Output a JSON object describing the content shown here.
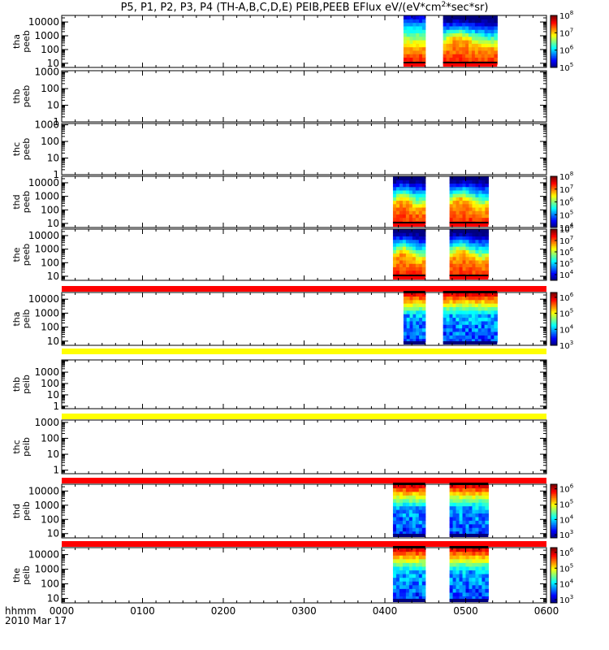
{
  "title": "P5, P1, P2, P3, P4 (TH-A,B,C,D,E) PEIB,PEEB EFlux eV/(eV*cm",
  "title_sup": "2",
  "title_end": "*sec*sr)",
  "x_axis": {
    "label": "hhmm",
    "date": "2010 Mar 17",
    "tick_labels": [
      "0000",
      "0100",
      "0200",
      "0300",
      "0400",
      "0500",
      "0600"
    ]
  },
  "colors": {
    "flag_red": "#ff0000",
    "flag_yellow": "#ffff00",
    "frame": "#000000"
  },
  "chart_data": {
    "type": "heatmap",
    "xlim_hours": [
      0,
      6
    ],
    "x": [
      0,
      1,
      2,
      3,
      4,
      5,
      6
    ],
    "panels": [
      {
        "probe": "tha",
        "product": "peeb",
        "ylabel": [
          "tha",
          "peeb"
        ],
        "yscale": "log",
        "ylim": [
          5,
          30000
        ],
        "yticks": [
          "10",
          "100",
          "1000",
          "10000"
        ],
        "cb_exps": [
          "5",
          "6",
          "7",
          "8"
        ],
        "cb_range": [
          5,
          8
        ],
        "flag_before": null,
        "intervals": [
          {
            "start": 4.23,
            "end": 4.5,
            "style": "eh"
          },
          {
            "start": 4.72,
            "end": 5.39,
            "style": "el"
          }
        ]
      },
      {
        "probe": "thb",
        "product": "peeb",
        "ylabel": [
          "thb",
          "peeb"
        ],
        "yscale": "log",
        "ylim": [
          1,
          1200
        ],
        "yticks": [
          "1",
          "10",
          "100",
          "1000"
        ],
        "cb_exps": [],
        "flag_before": null,
        "intervals": []
      },
      {
        "probe": "thc",
        "product": "peeb",
        "ylabel": [
          "thc",
          "peeb"
        ],
        "yscale": "log",
        "ylim": [
          1,
          1200
        ],
        "yticks": [
          "1",
          "10",
          "100",
          "1000"
        ],
        "cb_exps": [],
        "flag_before": null,
        "intervals": []
      },
      {
        "probe": "thd",
        "product": "peeb",
        "ylabel": [
          "thd",
          "peeb"
        ],
        "yscale": "log",
        "ylim": [
          5,
          30000
        ],
        "yticks": [
          "10",
          "100",
          "1000",
          "10000"
        ],
        "cb_exps": [
          "4",
          "5",
          "6",
          "7",
          "8"
        ],
        "cb_range": [
          4,
          8
        ],
        "flag_before": null,
        "intervals": [
          {
            "start": 4.1,
            "end": 4.5,
            "style": "el"
          },
          {
            "start": 4.8,
            "end": 5.28,
            "style": "el"
          }
        ]
      },
      {
        "probe": "the",
        "product": "peeb",
        "ylabel": [
          "the",
          "peeb"
        ],
        "yscale": "log",
        "ylim": [
          5,
          30000
        ],
        "yticks": [
          "10",
          "100",
          "1000",
          "10000"
        ],
        "cb_exps": [
          "4",
          "5",
          "6",
          "7",
          "8"
        ],
        "cb_range": [
          3.5,
          8
        ],
        "flag_before": null,
        "intervals": [
          {
            "start": 4.1,
            "end": 4.5,
            "style": "el"
          },
          {
            "start": 4.8,
            "end": 5.28,
            "style": "el"
          }
        ]
      },
      {
        "probe": "tha",
        "product": "peib",
        "ylabel": [
          "tha",
          "peib"
        ],
        "yscale": "log",
        "ylim": [
          5,
          30000
        ],
        "yticks": [
          "10",
          "100",
          "1000",
          "10000"
        ],
        "cb_exps": [
          "3",
          "4",
          "5",
          "6"
        ],
        "cb_range": [
          3,
          6.3
        ],
        "flag_before": "red",
        "intervals": [
          {
            "start": 4.23,
            "end": 4.5,
            "style": "ion"
          },
          {
            "start": 4.72,
            "end": 5.39,
            "style": "ion"
          }
        ]
      },
      {
        "probe": "thb",
        "product": "peib",
        "ylabel": [
          "thb",
          "peib"
        ],
        "yscale": "log",
        "ylim": [
          0.6,
          12000
        ],
        "yticks": [
          "1",
          "10",
          "100",
          "1000"
        ],
        "cb_exps": [],
        "flag_before": "yellow",
        "intervals": []
      },
      {
        "probe": "thc",
        "product": "peib",
        "ylabel": [
          "thc",
          "peib"
        ],
        "yscale": "log",
        "ylim": [
          0.6,
          1400
        ],
        "yticks": [
          "1",
          "10",
          "100",
          "1000"
        ],
        "cb_exps": [],
        "flag_before": "yellow",
        "intervals": []
      },
      {
        "probe": "thd",
        "product": "peib",
        "ylabel": [
          "thd",
          "peib"
        ],
        "yscale": "log",
        "ylim": [
          5,
          30000
        ],
        "yticks": [
          "10",
          "100",
          "1000",
          "10000"
        ],
        "cb_exps": [
          "3",
          "4",
          "5",
          "6"
        ],
        "cb_range": [
          2.8,
          6.3
        ],
        "flag_before": "red",
        "intervals": [
          {
            "start": 4.1,
            "end": 4.5,
            "style": "ion"
          },
          {
            "start": 4.8,
            "end": 5.28,
            "style": "ion"
          }
        ]
      },
      {
        "probe": "the",
        "product": "peib",
        "ylabel": [
          "the",
          "peib"
        ],
        "yscale": "log",
        "ylim": [
          5,
          30000
        ],
        "yticks": [
          "10",
          "100",
          "1000",
          "10000"
        ],
        "cb_exps": [
          "3",
          "4",
          "5",
          "6"
        ],
        "cb_range": [
          2.8,
          6.3
        ],
        "flag_before": "red",
        "intervals": [
          {
            "start": 4.1,
            "end": 4.5,
            "style": "ion"
          },
          {
            "start": 4.8,
            "end": 5.28,
            "style": "ion"
          }
        ]
      }
    ]
  }
}
